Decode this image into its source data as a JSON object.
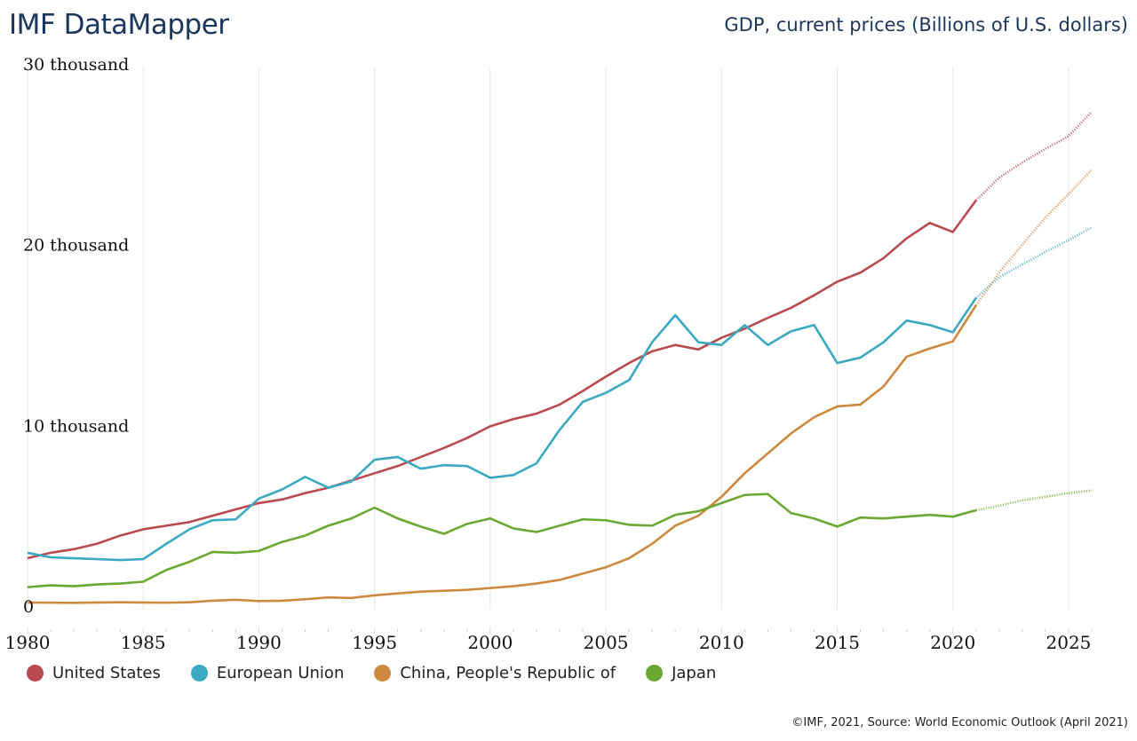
{
  "header": {
    "app_title": "IMF DataMapper",
    "indicator_title": "GDP, current prices (Billions of U.S. dollars)"
  },
  "footer": {
    "credit": "©IMF, 2021, Source: World Economic Outlook (April 2021)"
  },
  "chart_data": {
    "type": "line",
    "title": "GDP, current prices (Billions of U.S. dollars)",
    "xlabel": "",
    "ylabel": "",
    "xlim": [
      1980,
      2026
    ],
    "ylim": [
      0,
      30000
    ],
    "grid": "vertical",
    "legend_position": "bottom-left",
    "projection_start_year": 2021,
    "y_ticks": [
      {
        "value": 0,
        "label": "0"
      },
      {
        "value": 10000,
        "label": "10 thousand"
      },
      {
        "value": 20000,
        "label": "20 thousand"
      },
      {
        "value": 30000,
        "label": "30 thousand"
      }
    ],
    "x_ticks": [
      {
        "value": 1980,
        "label": "1980"
      },
      {
        "value": 1985,
        "label": "1985"
      },
      {
        "value": 1990,
        "label": "1990"
      },
      {
        "value": 1995,
        "label": "1995"
      },
      {
        "value": 2000,
        "label": "2000"
      },
      {
        "value": 2005,
        "label": "2005"
      },
      {
        "value": 2010,
        "label": "2010"
      },
      {
        "value": 2015,
        "label": "2015"
      },
      {
        "value": 2020,
        "label": "2020"
      },
      {
        "value": 2025,
        "label": "2025"
      }
    ],
    "x": [
      1980,
      1981,
      1982,
      1983,
      1984,
      1985,
      1986,
      1987,
      1988,
      1989,
      1990,
      1991,
      1992,
      1993,
      1994,
      1995,
      1996,
      1997,
      1998,
      1999,
      2000,
      2001,
      2002,
      2003,
      2004,
      2005,
      2006,
      2007,
      2008,
      2009,
      2010,
      2011,
      2012,
      2013,
      2014,
      2015,
      2016,
      2017,
      2018,
      2019,
      2020,
      2021,
      2022,
      2023,
      2024,
      2025,
      2026
    ],
    "series": [
      {
        "name": "United States",
        "color": "#b94a4f",
        "values": [
          2650,
          2950,
          3150,
          3450,
          3900,
          4250,
          4450,
          4650,
          5000,
          5350,
          5700,
          5900,
          6250,
          6550,
          6950,
          7350,
          7750,
          8250,
          8750,
          9300,
          9950,
          10350,
          10650,
          11150,
          11900,
          12700,
          13450,
          14100,
          14450,
          14200,
          14850,
          15350,
          15950,
          16500,
          17200,
          17950,
          18450,
          19250,
          20350,
          21200,
          20700,
          22450,
          23700,
          24550,
          25300,
          26000,
          27350
        ]
      },
      {
        "name": "European Union",
        "color": "#3aa9c1",
        "values": [
          2950,
          2700,
          2650,
          2600,
          2550,
          2600,
          3450,
          4250,
          4750,
          4800,
          5950,
          6450,
          7150,
          6550,
          6900,
          8100,
          8250,
          7600,
          7800,
          7750,
          7100,
          7250,
          7900,
          9750,
          11300,
          11800,
          12500,
          14600,
          16100,
          14600,
          14450,
          15550,
          14450,
          15200,
          15550,
          13450,
          13750,
          14600,
          15800,
          15550,
          15150,
          17050,
          18200,
          18900,
          19600,
          20250,
          20950
        ]
      },
      {
        "name": "China, People's Republic of",
        "color": "#cd8a3e",
        "values": [
          200,
          190,
          180,
          200,
          210,
          200,
          190,
          210,
          300,
          350,
          280,
          300,
          380,
          480,
          450,
          600,
          700,
          800,
          850,
          900,
          1000,
          1100,
          1250,
          1450,
          1800,
          2150,
          2650,
          3450,
          4450,
          5000,
          6050,
          7350,
          8450,
          9550,
          10450,
          11050,
          11150,
          12150,
          13800,
          14250,
          14650,
          16650,
          18450,
          20000,
          21500,
          22800,
          24150
        ]
      },
      {
        "name": "Japan",
        "color": "#6aa833",
        "values": [
          1050,
          1150,
          1100,
          1200,
          1250,
          1350,
          2000,
          2450,
          3000,
          2950,
          3050,
          3550,
          3900,
          4450,
          4850,
          5450,
          4850,
          4400,
          4000,
          4550,
          4850,
          4300,
          4100,
          4450,
          4800,
          4750,
          4500,
          4450,
          5050,
          5250,
          5700,
          6150,
          6200,
          5150,
          4850,
          4400,
          4900,
          4850,
          4950,
          5050,
          4950,
          5300,
          5550,
          5850,
          6050,
          6250,
          6400
        ]
      }
    ]
  }
}
